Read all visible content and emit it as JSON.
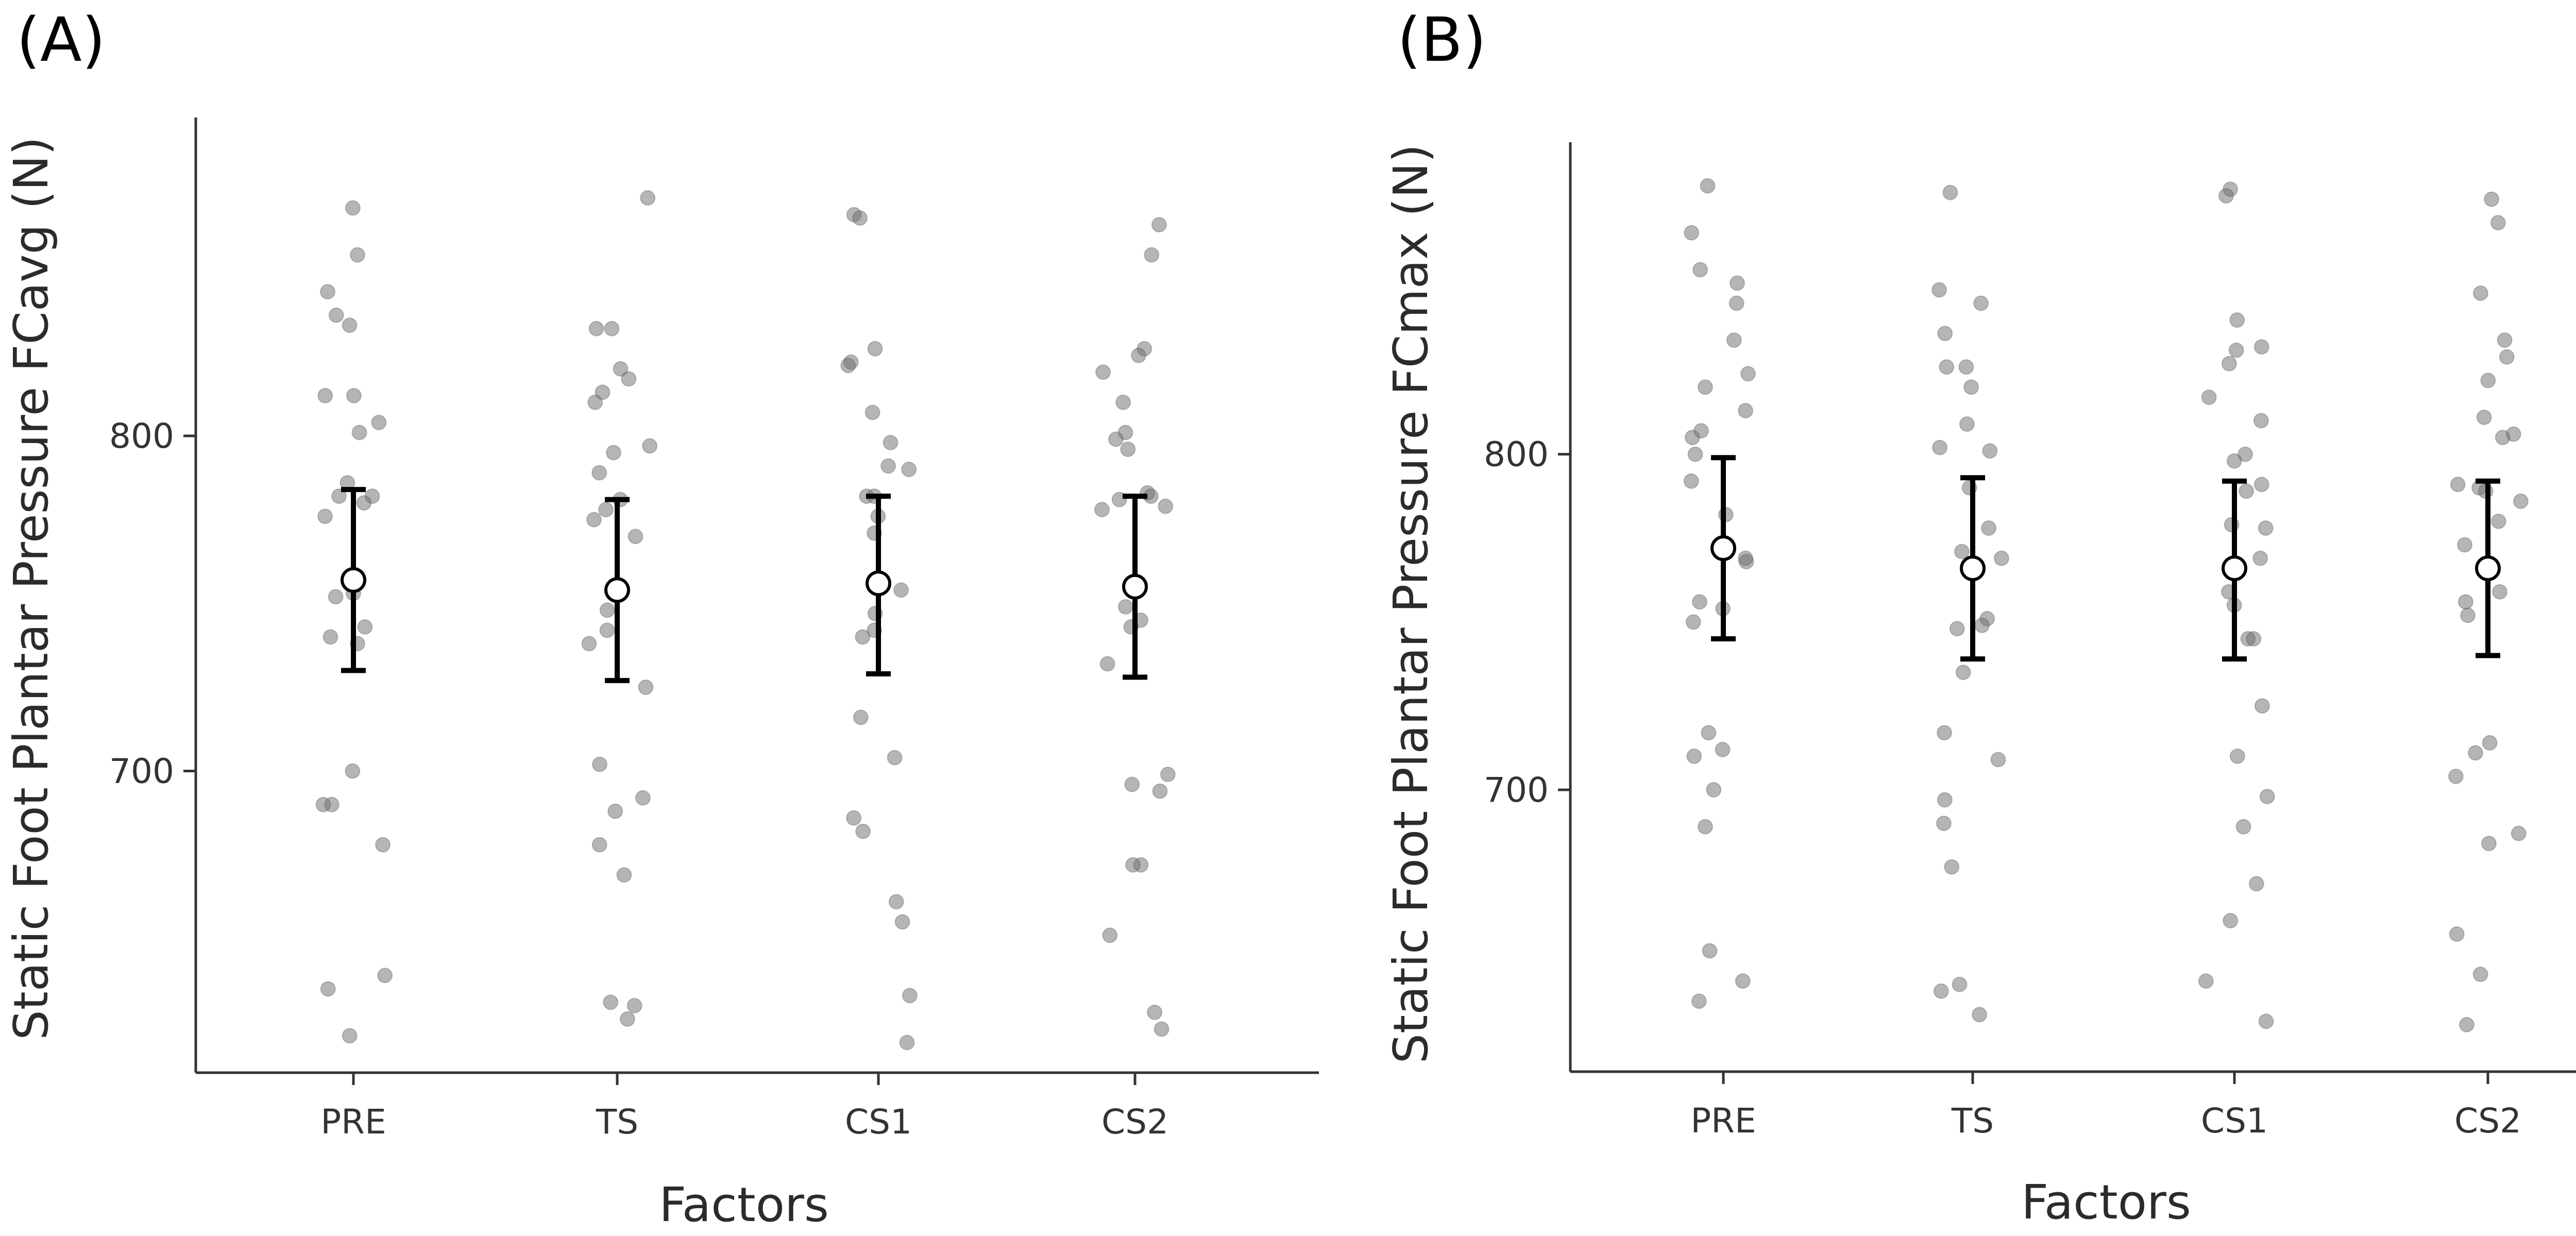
{
  "chart_data": [
    {
      "type": "scatter",
      "panel_label": "(A)",
      "xlabel": "Factors",
      "ylabel": "Static Foot Plantar Pressure FCavg (N)",
      "categories": [
        "PRE",
        "TS",
        "CS1",
        "CS2"
      ],
      "ylim": [
        610,
        895
      ],
      "yticks": [
        700,
        800
      ],
      "grid": false,
      "legend": "none",
      "point_color": "#6b6b6b",
      "means": [
        757,
        754,
        756,
        755
      ],
      "ci_lower": [
        730,
        727,
        729,
        728
      ],
      "ci_upper": [
        784,
        781,
        782,
        782
      ],
      "series": [
        {
          "values": [
            868,
            854,
            843,
            836,
            833,
            812,
            812,
            804,
            801,
            786,
            782,
            782,
            780,
            776,
            753,
            752,
            743,
            740,
            738,
            700,
            690,
            690,
            678,
            639,
            635,
            621
          ]
        },
        {
          "values": [
            871,
            832,
            832,
            820,
            817,
            813,
            810,
            797,
            795,
            789,
            781,
            778,
            775,
            770,
            748,
            742,
            738,
            725,
            702,
            692,
            688,
            678,
            669,
            631,
            630,
            626
          ]
        },
        {
          "values": [
            866,
            865,
            826,
            822,
            821,
            807,
            798,
            791,
            790,
            782,
            782,
            776,
            771,
            754,
            747,
            742,
            740,
            716,
            704,
            686,
            682,
            661,
            655,
            633,
            619
          ]
        },
        {
          "values": [
            863,
            854,
            826,
            824,
            819,
            810,
            801,
            799,
            796,
            783,
            782,
            781,
            779,
            778,
            749,
            745,
            743,
            732,
            699,
            696,
            694,
            672,
            672,
            651,
            628,
            623
          ]
        }
      ]
    },
    {
      "type": "scatter",
      "panel_label": "(B)",
      "xlabel": "Factors",
      "ylabel": "Static Foot Plantar Pressure FCmax (N)",
      "categories": [
        "PRE",
        "TS",
        "CS1",
        "CS2"
      ],
      "ylim": [
        616,
        893
      ],
      "yticks": [
        700,
        800
      ],
      "grid": false,
      "legend": "none",
      "point_color": "#6b6b6b",
      "means": [
        772,
        766,
        766,
        766
      ],
      "ci_lower": [
        745,
        739,
        739,
        740
      ],
      "ci_upper": [
        799,
        793,
        792,
        792
      ],
      "series": [
        {
          "values": [
            880,
            866,
            855,
            851,
            845,
            834,
            824,
            820,
            813,
            807,
            805,
            800,
            792,
            782,
            769,
            768,
            756,
            754,
            750,
            717,
            712,
            710,
            700,
            689,
            652,
            643,
            637
          ]
        },
        {
          "values": [
            878,
            849,
            845,
            836,
            826,
            826,
            820,
            809,
            802,
            801,
            790,
            778,
            771,
            769,
            751,
            749,
            748,
            735,
            717,
            709,
            697,
            690,
            677,
            642,
            640,
            633
          ]
        },
        {
          "values": [
            879,
            877,
            840,
            832,
            831,
            827,
            817,
            810,
            800,
            798,
            791,
            789,
            779,
            778,
            769,
            759,
            755,
            745,
            745,
            725,
            710,
            698,
            689,
            672,
            661,
            643,
            631
          ]
        },
        {
          "values": [
            876,
            869,
            848,
            834,
            829,
            822,
            811,
            806,
            805,
            791,
            790,
            789,
            786,
            780,
            773,
            759,
            756,
            752,
            714,
            711,
            704,
            687,
            684,
            657,
            645,
            630
          ]
        }
      ]
    }
  ]
}
